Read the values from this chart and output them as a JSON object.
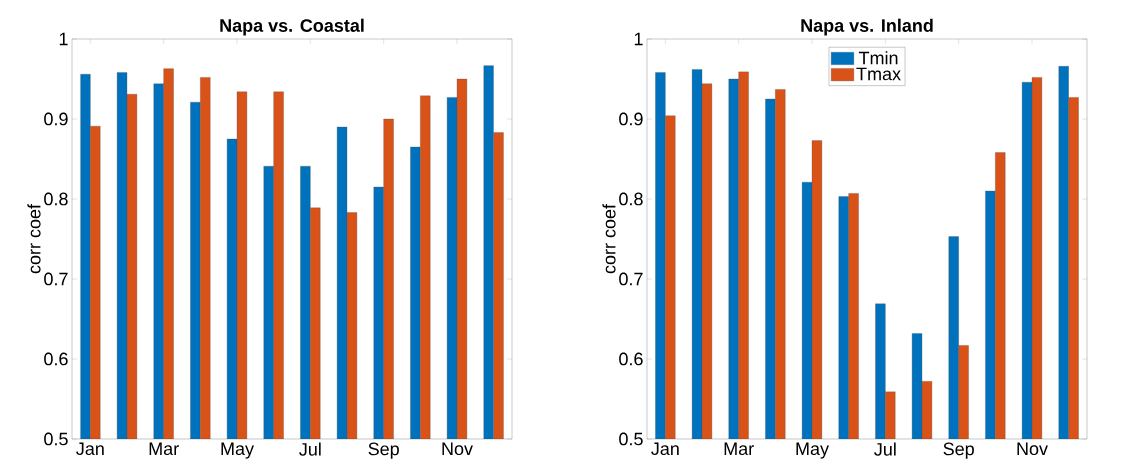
{
  "chart_data": [
    {
      "type": "bar",
      "title": "Napa vs. Coastal",
      "ylabel": "corr coef",
      "categories": [
        "Jan",
        null,
        "Mar",
        null,
        "May",
        null,
        "Jul",
        null,
        "Sep",
        null,
        "Nov",
        null
      ],
      "series": [
        {
          "color": "#0072bd",
          "values": [
            0.956,
            0.958,
            0.944,
            0.921,
            0.875,
            0.841,
            0.841,
            0.89,
            0.815,
            0.865,
            0.927,
            0.967
          ]
        },
        {
          "color": "#d95319",
          "values": [
            0.891,
            0.931,
            0.963,
            0.952,
            0.934,
            0.934,
            0.789,
            0.783,
            0.9,
            0.929,
            0.95,
            0.883
          ]
        }
      ],
      "ylim": [
        0.5,
        1
      ],
      "yticks": [
        0.5,
        0.6,
        0.7,
        0.8,
        0.9,
        1
      ],
      "grid": false,
      "legend": false
    },
    {
      "type": "bar",
      "title": "Napa vs. Inland",
      "ylabel": "corr coef",
      "categories": [
        "Jan",
        null,
        "Mar",
        null,
        "May",
        null,
        "Jul",
        null,
        "Sep",
        null,
        "Nov",
        null
      ],
      "series": [
        {
          "name": "Tmin",
          "color": "#0072bd",
          "values": [
            0.958,
            0.962,
            0.95,
            0.925,
            0.821,
            0.803,
            0.669,
            0.632,
            0.753,
            0.81,
            0.946,
            0.966
          ]
        },
        {
          "name": "Tmax",
          "color": "#d95319",
          "values": [
            0.904,
            0.944,
            0.959,
            0.937,
            0.873,
            0.807,
            0.559,
            0.572,
            0.617,
            0.858,
            0.952,
            0.927
          ]
        }
      ],
      "ylim": [
        0.5,
        1
      ],
      "yticks": [
        0.5,
        0.6,
        0.7,
        0.8,
        0.9,
        1
      ],
      "grid": false,
      "legend": "top"
    }
  ]
}
